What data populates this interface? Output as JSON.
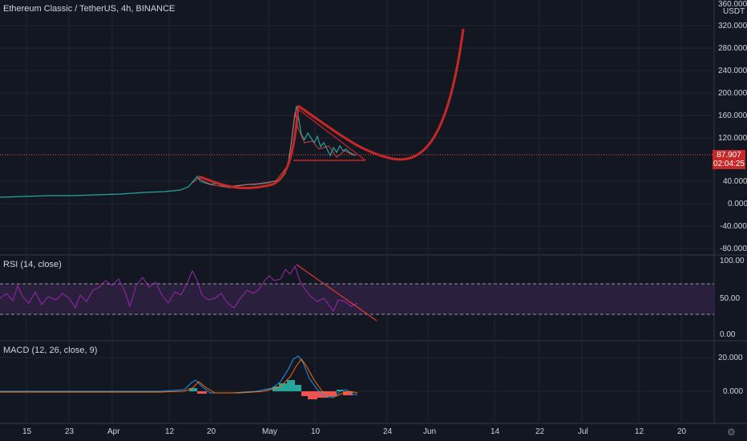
{
  "header": {
    "title": "Ethereum Classic / TetherUS, 4h, BINANCE"
  },
  "price_axis": {
    "currency": "USDT",
    "ticks": [
      "360.000",
      "320.000",
      "280.000",
      "240.000",
      "200.000",
      "160.000",
      "120.000",
      "40.000",
      "0.000",
      "-40.000",
      "-80.000"
    ]
  },
  "price_tag": {
    "price": "87.907",
    "countdown": "02:04:25"
  },
  "rsi": {
    "title": "RSI (14, close)",
    "ticks": [
      "100.00",
      "50.00",
      "0.00"
    ]
  },
  "macd": {
    "title": "MACD (12, 26, close, 9)",
    "ticks": [
      "20.000",
      "0.000"
    ]
  },
  "time_axis": {
    "labels": [
      "15",
      "23",
      "Apr",
      "12",
      "20",
      "May",
      "10",
      "24",
      "Jun",
      "14",
      "22",
      "Jul",
      "12",
      "20"
    ]
  },
  "colors": {
    "background": "#131722",
    "drawing": "#c62828",
    "rsi_line": "#9c27b0",
    "price_line": "#ef5350",
    "macd_line": "#2196f3",
    "signal_line": "#ff6d00"
  },
  "icons": {
    "settings": "gear-icon"
  }
}
